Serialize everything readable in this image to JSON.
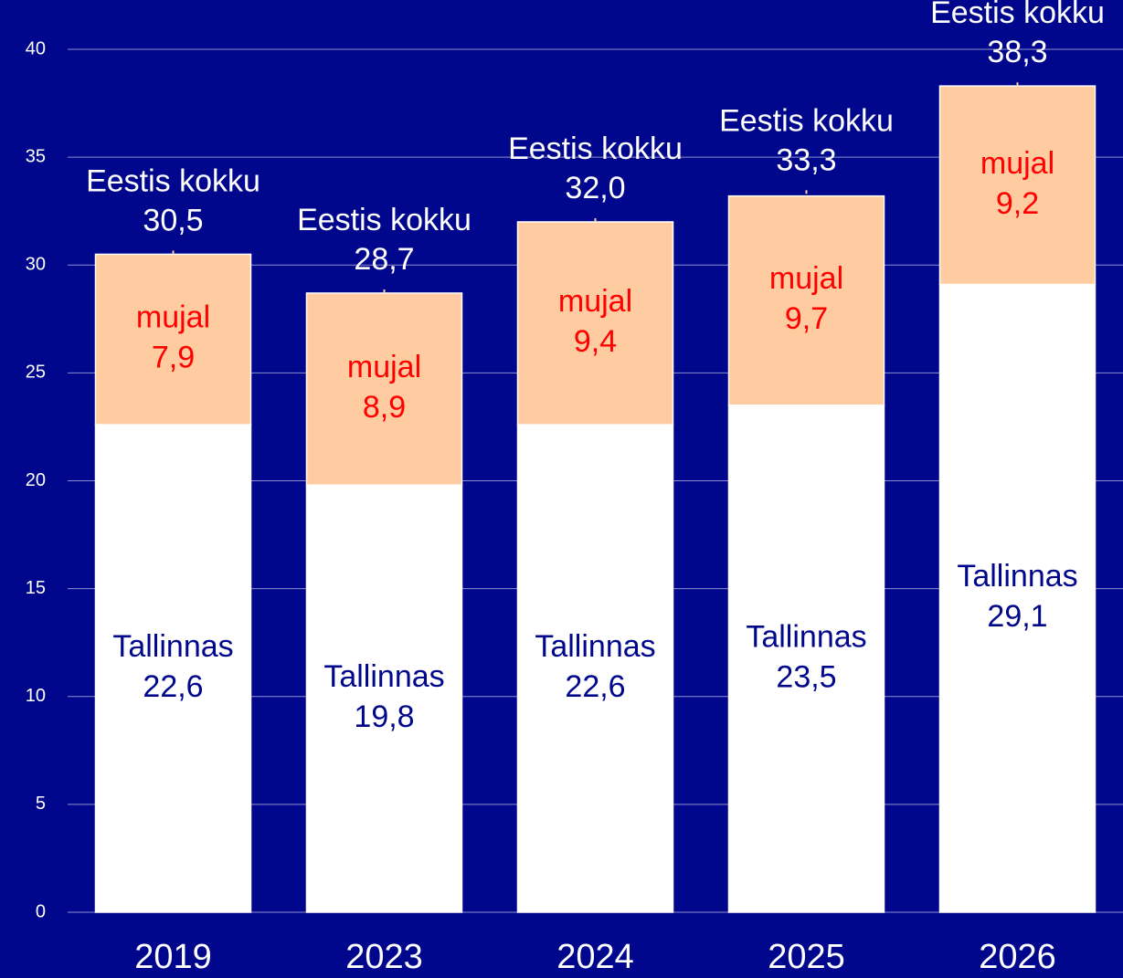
{
  "chart_data": {
    "type": "stacked_bar",
    "categories": [
      "2019",
      "2023",
      "2024",
      "2025",
      "2026"
    ],
    "series": [
      {
        "name": "Tallinnas",
        "color": "#ffffff",
        "label_color": "#00078c",
        "values": [
          22.6,
          19.8,
          22.6,
          23.5,
          29.1
        ],
        "value_labels": [
          "22,6",
          "19,8",
          "22,6",
          "23,5",
          "29,1"
        ]
      },
      {
        "name": "mujal",
        "color": "#ffcba0",
        "label_color": "#ff0000",
        "values": [
          7.9,
          8.9,
          9.4,
          9.7,
          9.2
        ],
        "value_labels": [
          "7,9",
          "8,9",
          "9,4",
          "9,7",
          "9,2"
        ]
      }
    ],
    "totals": {
      "name": "Eestis kokku",
      "color": "#ffffff",
      "values": [
        30.5,
        28.7,
        32.0,
        33.3,
        38.3
      ],
      "value_labels": [
        "30,5",
        "28,7",
        "32,0",
        "33,3",
        "38,3"
      ]
    },
    "ylim": [
      0,
      40
    ],
    "yticks": [
      0,
      5,
      10,
      15,
      20,
      25,
      30,
      35,
      40
    ],
    "grid": true,
    "background": "#00078c"
  }
}
